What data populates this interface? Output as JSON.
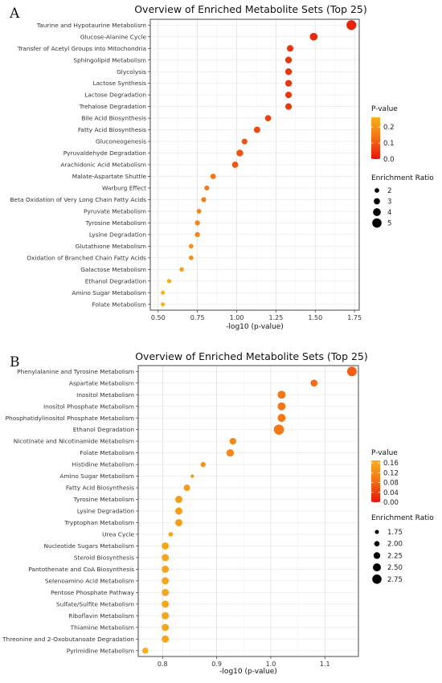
{
  "panels": [
    {
      "letter": "A",
      "title": "Overview of Enriched Metabolite Sets (Top 25)",
      "xlabel": "-log10 (p-value)",
      "colorLegendTitle": "P-value",
      "sizeLegendTitle": "Enrichment Ratio",
      "colorTicks": [
        0.0,
        0.1,
        0.2
      ],
      "colorRange": [
        0.0,
        0.26
      ],
      "sizeTicks": [
        2,
        3,
        4,
        5
      ],
      "sizeRange": [
        1.5,
        5.5
      ],
      "chart_data": {
        "type": "scatter",
        "title": "Overview of Enriched Metabolite Sets (Top 25)",
        "xlabel": "-log10 (p-value)",
        "xlim": [
          0.45,
          1.78
        ],
        "xticks": [
          0.5,
          0.75,
          1.0,
          1.25,
          1.5,
          1.75
        ],
        "xtickLabels": [
          "0.50",
          "0.75",
          "1.00",
          "1.25",
          "1.50",
          "1.75"
        ],
        "categories": [
          "Taurine and Hypotaurine Metabolism",
          "Glucose-Alanine Cycle",
          "Transfer of Acetyl Groups into Mitochondria",
          "Sphingolipid Metabolism",
          "Glycolysis",
          "Lactose Synthesis",
          "Lactose Degradation",
          "Trehalose Degradation",
          "Bile Acid Biosynthesis",
          "Fatty Acid Biosynthesis",
          "Gluconeogenesis",
          "Pyruvaldehyde Degradation",
          "Arachidonic Acid Metabolism",
          "Malate-Aspartate Shuttle",
          "Warburg Effect",
          "Beta Oxidation of Very Long Chain Fatty Acids",
          "Pyruvate Metabolism",
          "Tyrosine Metabolism",
          "Lysine Degradation",
          "Glutathione Metabolism",
          "Oxidation of Branched Chain Fatty Acids",
          "Galactose Metabolism",
          "Ethanol Degradation",
          "Amino Sugar Metabolism",
          "Folate Metabolism"
        ],
        "x": [
          1.73,
          1.49,
          1.34,
          1.33,
          1.33,
          1.33,
          1.33,
          1.33,
          1.2,
          1.13,
          1.05,
          1.02,
          0.99,
          0.85,
          0.81,
          0.79,
          0.76,
          0.75,
          0.75,
          0.71,
          0.71,
          0.65,
          0.57,
          0.53,
          0.53
        ],
        "pvalue": [
          0.019,
          0.032,
          0.046,
          0.047,
          0.047,
          0.047,
          0.047,
          0.047,
          0.063,
          0.074,
          0.089,
          0.095,
          0.102,
          0.141,
          0.155,
          0.162,
          0.174,
          0.178,
          0.178,
          0.195,
          0.195,
          0.224,
          0.269,
          0.295,
          0.295
        ],
        "enrichment_ratio": [
          5.3,
          4.0,
          3.2,
          3.3,
          3.3,
          3.3,
          3.2,
          3.2,
          3.0,
          3.1,
          2.7,
          3.4,
          3.1,
          2.5,
          2.2,
          2.2,
          2.0,
          2.3,
          2.3,
          2.0,
          2.0,
          1.9,
          1.8,
          1.6,
          1.6
        ],
        "grid": true,
        "legend": "right"
      }
    },
    {
      "letter": "B",
      "title": "Overview of Enriched Metabolite Sets (Top 25)",
      "xlabel": "-log10 (p-value)",
      "colorLegendTitle": "P-value",
      "sizeLegendTitle": "Enrichment Ratio",
      "colorTicks": [
        0.0,
        0.04,
        0.08,
        0.12,
        0.16
      ],
      "colorRange": [
        0.0,
        0.17
      ],
      "sizeTicks": [
        1.75,
        2.0,
        2.25,
        2.5,
        2.75
      ],
      "sizeRange": [
        1.6,
        2.9
      ],
      "chart_data": {
        "type": "scatter",
        "title": "Overview of Enriched Metabolite Sets (Top 25)",
        "xlabel": "-log10 (p-value)",
        "xlim": [
          0.755,
          1.162
        ],
        "xticks": [
          0.8,
          0.9,
          1.0,
          1.1
        ],
        "xtickLabels": [
          "0.8",
          "0.9",
          "1.0",
          "1.1"
        ],
        "categories": [
          "Phenylalanine and Tyrosine Metabolism",
          "Aspartate Metabolism",
          "Inositol Metabolism",
          "Inositol Phosphate Metabolism",
          "Phosphatidylinositol Phosphate Metabolism",
          "Ethanol Degradation",
          "Nicotinate and Nicotinamide Metabolism",
          "Folate Metabolism",
          "Histidine Metabolism",
          "Amino Sugar Metabolism",
          "Fatty Acid Biosynthesis",
          "Tyrosine Metabolism",
          "Lysine Degradation",
          "Tryptophan Metabolism",
          "Urea Cycle",
          "Nucleotide Sugars Metabolism",
          "Steroid Biosynthesis",
          "Pantothenate and CoA Biosynthesis",
          "Selenoamino Acid Metabolism",
          "Pentose Phosphate Pathway",
          "Sulfate/Sulfite Metabolism",
          "Riboflavin Metabolism",
          "Thiamine Metabolism",
          "Threonine and 2-Oxobutanoate Degradation",
          "Pyrimidine Metabolism"
        ],
        "x": [
          1.15,
          1.08,
          1.02,
          1.02,
          1.02,
          1.015,
          0.93,
          0.925,
          0.875,
          0.855,
          0.845,
          0.83,
          0.83,
          0.83,
          0.815,
          0.805,
          0.805,
          0.805,
          0.805,
          0.805,
          0.805,
          0.805,
          0.805,
          0.805,
          0.768
        ],
        "pvalue": [
          0.071,
          0.083,
          0.095,
          0.095,
          0.095,
          0.097,
          0.117,
          0.119,
          0.133,
          0.14,
          0.143,
          0.148,
          0.148,
          0.148,
          0.153,
          0.157,
          0.157,
          0.157,
          0.157,
          0.157,
          0.157,
          0.157,
          0.157,
          0.157,
          0.171
        ],
        "enrichment_ratio": [
          2.8,
          2.3,
          2.5,
          2.5,
          2.5,
          2.9,
          2.25,
          2.4,
          1.95,
          1.65,
          2.2,
          2.35,
          2.35,
          2.35,
          1.85,
          2.35,
          2.35,
          2.35,
          2.35,
          2.35,
          2.35,
          2.35,
          2.35,
          2.35,
          2.15
        ],
        "grid": true,
        "legend": "right"
      }
    }
  ]
}
